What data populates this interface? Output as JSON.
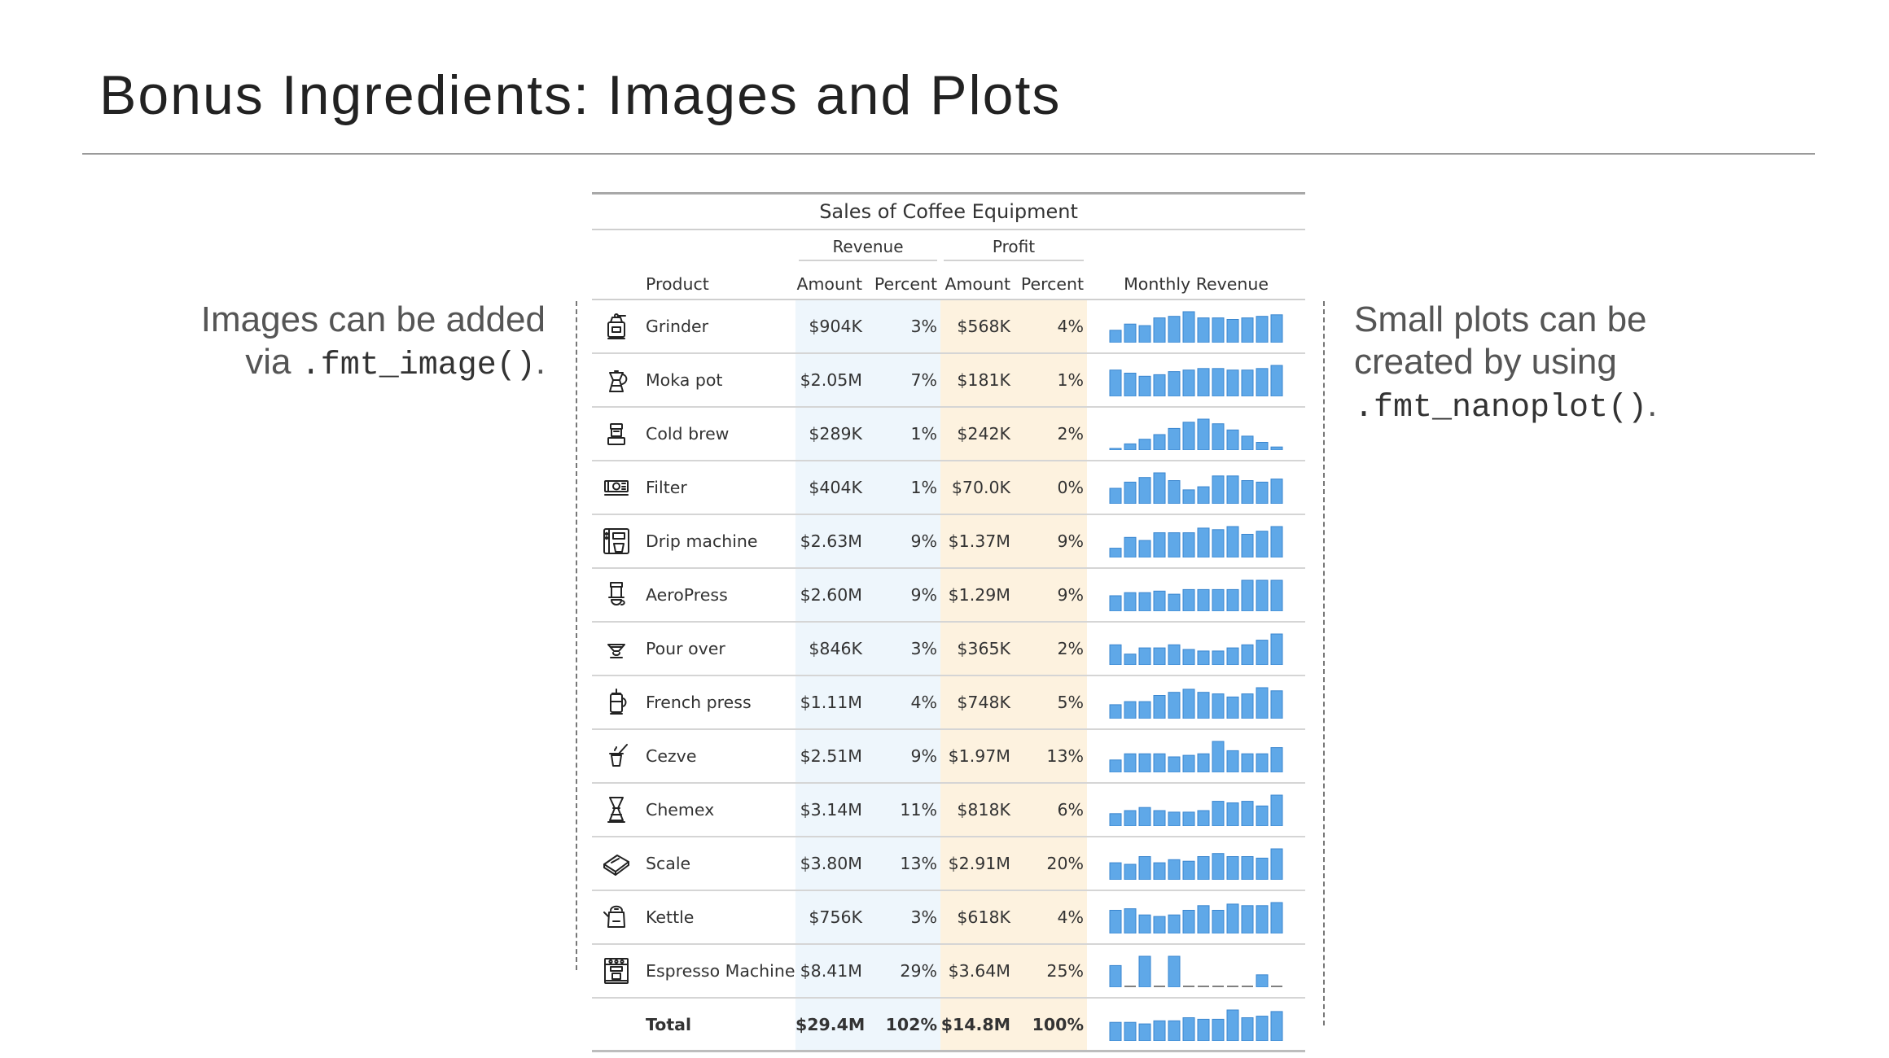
{
  "slide": {
    "title": "Bonus Ingredients: Images and Plots",
    "left_note": {
      "line1": "Images can be added",
      "prefix": "via ",
      "code": ".fmt_image()",
      "suffix": "."
    },
    "right_note": {
      "line1": "Small plots can be",
      "line2": "created by using",
      "code": ".fmt_nanoplot()",
      "suffix": "."
    }
  },
  "table": {
    "caption": "Sales of Coffee Equipment",
    "spanners": {
      "revenue": "Revenue",
      "profit": "Profit"
    },
    "columns": {
      "product": "Product",
      "rev_amount": "Amount",
      "rev_percent": "Percent",
      "prof_amount": "Amount",
      "prof_percent": "Percent",
      "monthly": "Monthly Revenue"
    },
    "colors": {
      "bar": "#5fa8e8",
      "bar_stroke": "#3a86cf",
      "revenue_bg": "#eef6fc",
      "profit_bg": "#fdf2df"
    },
    "rows": [
      {
        "icon": "grinder-icon",
        "product": "Grinder",
        "rev_amount": "$904K",
        "rev_percent": "3%",
        "prof_amount": "$568K",
        "prof_percent": "4%",
        "monthly": [
          0.4,
          0.6,
          0.55,
          0.8,
          0.85,
          1.0,
          0.8,
          0.8,
          0.75,
          0.8,
          0.85,
          0.9
        ]
      },
      {
        "icon": "moka-pot-icon",
        "product": "Moka pot",
        "rev_amount": "$2.05M",
        "rev_percent": "7%",
        "prof_amount": "$181K",
        "prof_percent": "1%",
        "monthly": [
          0.85,
          0.75,
          0.65,
          0.7,
          0.8,
          0.85,
          0.9,
          0.9,
          0.85,
          0.85,
          0.9,
          1.0
        ]
      },
      {
        "icon": "cold-brew-icon",
        "product": "Cold brew",
        "rev_amount": "$289K",
        "rev_percent": "1%",
        "prof_amount": "$242K",
        "prof_percent": "2%",
        "monthly": [
          0.05,
          0.2,
          0.35,
          0.5,
          0.7,
          0.9,
          1.0,
          0.85,
          0.65,
          0.45,
          0.25,
          0.1
        ]
      },
      {
        "icon": "filter-icon",
        "product": "Filter",
        "rev_amount": "$404K",
        "rev_percent": "1%",
        "prof_amount": "$70.0K",
        "prof_percent": "0%",
        "monthly": [
          0.5,
          0.7,
          0.85,
          1.0,
          0.75,
          0.45,
          0.55,
          0.9,
          0.9,
          0.75,
          0.7,
          0.8
        ]
      },
      {
        "icon": "drip-machine-icon",
        "product": "Drip machine",
        "rev_amount": "$2.63M",
        "rev_percent": "9%",
        "prof_amount": "$1.37M",
        "prof_percent": "9%",
        "monthly": [
          0.3,
          0.65,
          0.55,
          0.8,
          0.8,
          0.8,
          0.95,
          0.9,
          1.0,
          0.75,
          0.85,
          1.0
        ]
      },
      {
        "icon": "aeropress-icon",
        "product": "AeroPress",
        "rev_amount": "$2.60M",
        "rev_percent": "9%",
        "prof_amount": "$1.29M",
        "prof_percent": "9%",
        "monthly": [
          0.5,
          0.6,
          0.6,
          0.65,
          0.55,
          0.7,
          0.7,
          0.7,
          0.7,
          1.0,
          1.0,
          1.0
        ]
      },
      {
        "icon": "pour-over-icon",
        "product": "Pour over",
        "rev_amount": "$846K",
        "rev_percent": "3%",
        "prof_amount": "$365K",
        "prof_percent": "2%",
        "monthly": [
          0.65,
          0.35,
          0.55,
          0.55,
          0.65,
          0.5,
          0.45,
          0.45,
          0.55,
          0.65,
          0.8,
          1.0
        ]
      },
      {
        "icon": "french-press-icon",
        "product": "French press",
        "rev_amount": "$1.11M",
        "rev_percent": "4%",
        "prof_amount": "$748K",
        "prof_percent": "5%",
        "monthly": [
          0.45,
          0.55,
          0.55,
          0.75,
          0.85,
          0.95,
          0.85,
          0.8,
          0.7,
          0.8,
          1.0,
          0.9
        ]
      },
      {
        "icon": "cezve-icon",
        "product": "Cezve",
        "rev_amount": "$2.51M",
        "rev_percent": "9%",
        "prof_amount": "$1.97M",
        "prof_percent": "13%",
        "monthly": [
          0.4,
          0.6,
          0.6,
          0.6,
          0.5,
          0.55,
          0.6,
          1.0,
          0.7,
          0.6,
          0.6,
          0.8
        ]
      },
      {
        "icon": "chemex-icon",
        "product": "Chemex",
        "rev_amount": "$3.14M",
        "rev_percent": "11%",
        "prof_amount": "$818K",
        "prof_percent": "6%",
        "monthly": [
          0.4,
          0.5,
          0.6,
          0.5,
          0.45,
          0.45,
          0.5,
          0.8,
          0.75,
          0.8,
          0.65,
          1.0
        ]
      },
      {
        "icon": "scale-icon",
        "product": "Scale",
        "rev_amount": "$3.80M",
        "rev_percent": "13%",
        "prof_amount": "$2.91M",
        "prof_percent": "20%",
        "monthly": [
          0.55,
          0.5,
          0.75,
          0.55,
          0.65,
          0.6,
          0.75,
          0.85,
          0.75,
          0.75,
          0.7,
          1.0
        ]
      },
      {
        "icon": "kettle-icon",
        "product": "Kettle",
        "rev_amount": "$756K",
        "rev_percent": "3%",
        "prof_amount": "$618K",
        "prof_percent": "4%",
        "monthly": [
          0.75,
          0.8,
          0.6,
          0.55,
          0.6,
          0.75,
          0.9,
          0.75,
          0.95,
          0.9,
          0.9,
          1.0
        ]
      },
      {
        "icon": "espresso-machine-icon",
        "product": "Espresso Machine",
        "rev_amount": "$8.41M",
        "rev_percent": "29%",
        "prof_amount": "$3.64M",
        "prof_percent": "25%",
        "monthly": [
          0.7,
          0.0,
          1.0,
          0.0,
          1.0,
          0.0,
          0.0,
          0.0,
          0.0,
          0.0,
          0.4,
          0.0
        ]
      }
    ],
    "total": {
      "label": "Total",
      "rev_amount": "$29.4M",
      "rev_percent": "102%",
      "prof_amount": "$14.8M",
      "prof_percent": "100%",
      "monthly": [
        0.6,
        0.6,
        0.55,
        0.65,
        0.65,
        0.75,
        0.7,
        0.7,
        1.0,
        0.75,
        0.8,
        0.95
      ]
    }
  }
}
